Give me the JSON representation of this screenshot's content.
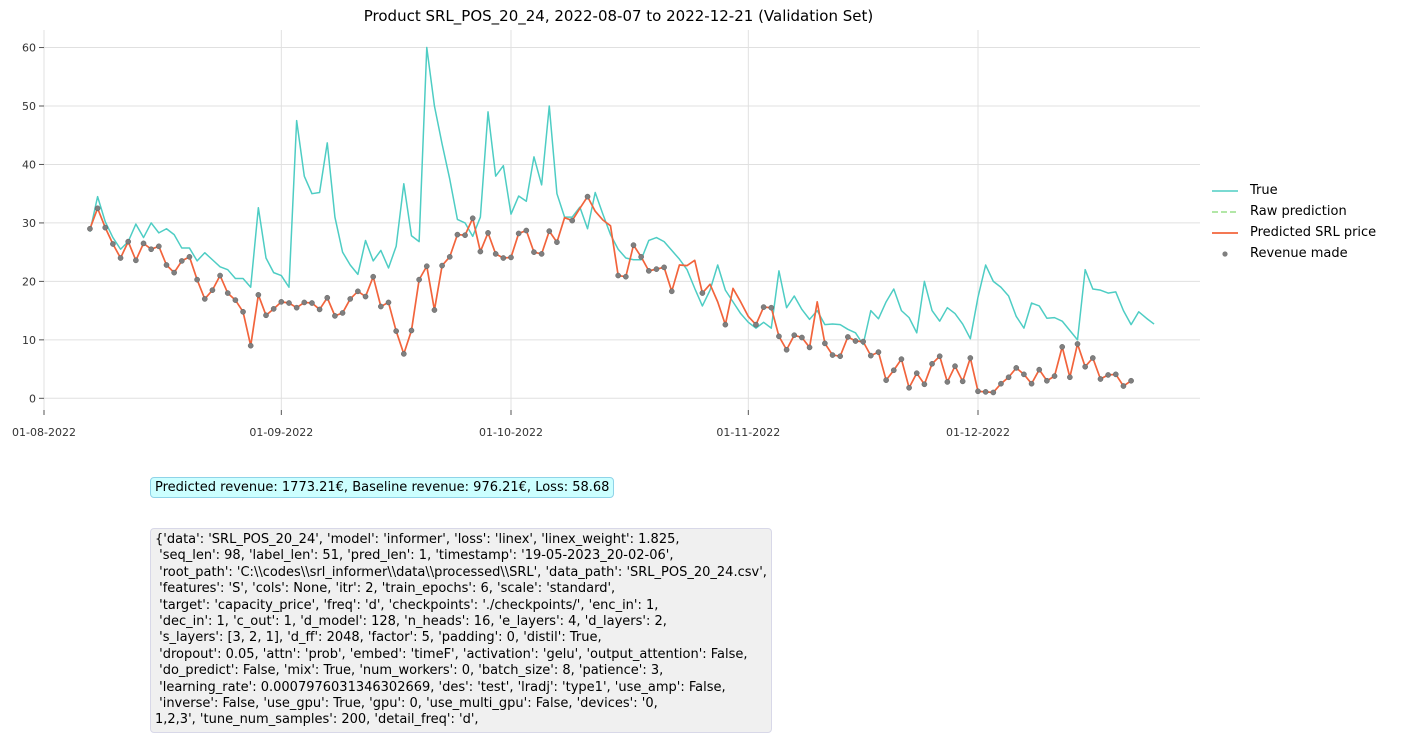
{
  "chart_data": {
    "type": "line",
    "title": "Product SRL_POS_20_24, 2022-08-07 to 2022-12-21 (Validation Set)",
    "xlabel": "",
    "ylabel": "",
    "x_start": "2022-08-07",
    "x_end": "2022-12-21",
    "xlim": [
      "2022-08-01",
      "2022-12-30"
    ],
    "ylim": [
      -2,
      63
    ],
    "yticks": [
      0,
      10,
      20,
      30,
      40,
      50,
      60
    ],
    "xticks": [
      {
        "date": "2022-08-01",
        "label": "01-08-2022"
      },
      {
        "date": "2022-09-01",
        "label": "01-09-2022"
      },
      {
        "date": "2022-10-01",
        "label": "01-10-2022"
      },
      {
        "date": "2022-11-01",
        "label": "01-11-2022"
      },
      {
        "date": "2022-12-01",
        "label": "01-12-2022"
      }
    ],
    "grid": true,
    "legend_position": "right",
    "series": [
      {
        "name": "True",
        "color": "#4ecdc4",
        "style": "solid",
        "values": [
          28.5,
          34.5,
          30.2,
          27.5,
          25.5,
          26.8,
          29.8,
          27.5,
          30,
          28.3,
          29,
          28,
          25.7,
          25.7,
          23.5,
          24.9,
          23.7,
          22.5,
          22,
          20.5,
          20.5,
          19,
          32.6,
          24,
          21.5,
          21,
          19,
          47.5,
          38,
          35,
          35.2,
          43.7,
          31,
          25,
          22.8,
          21.2,
          27,
          23.5,
          25.3,
          22.3,
          26,
          36.7,
          27.8,
          26.8,
          60,
          50,
          43.5,
          37.5,
          30.6,
          30,
          27.7,
          31,
          49,
          38,
          39.8,
          31.5,
          34.6,
          33.7,
          41.3,
          36.5,
          50,
          35,
          31,
          31,
          32.7,
          29,
          35.2,
          31.5,
          28,
          25.5,
          24,
          23.7,
          23.7,
          27,
          27.5,
          26.8,
          25.3,
          23.8,
          22,
          18.8,
          15.8,
          18.5,
          22.8,
          18.5,
          16.5,
          14.5,
          13,
          12,
          13,
          12,
          21.8,
          15.5,
          17.5,
          15.2,
          13.5,
          15,
          12.6,
          12.7,
          12.6,
          11.8,
          11.2,
          9.2,
          15,
          13.6,
          16.5,
          18.7,
          15,
          13.8,
          11.2,
          20,
          15,
          13.2,
          15.5,
          14.5,
          12.7,
          10.2,
          17.3,
          22.8,
          20,
          19,
          17.5,
          14,
          12,
          16.3,
          15.8,
          13.7,
          13.8,
          13.2,
          11.6,
          10,
          22,
          18.7,
          18.5,
          18,
          18.2,
          15,
          12.6,
          14.8,
          13.7,
          12.7
        ]
      },
      {
        "name": "Raw prediction",
        "color": "#98df8a",
        "style": "dashed",
        "values": []
      },
      {
        "name": "Predicted SRL price",
        "color": "#f2643c",
        "style": "solid",
        "values": [
          29,
          32.5,
          29.2,
          26.4,
          24,
          26.8,
          23.6,
          26.5,
          25.5,
          26,
          22.8,
          21.5,
          23.5,
          24.2,
          20.3,
          17,
          18.5,
          21,
          18,
          16.8,
          14.8,
          9,
          17.7,
          14.2,
          15.3,
          16.5,
          16.3,
          15.5,
          16.4,
          16.3,
          15.2,
          17.2,
          14.1,
          14.6,
          17,
          18.3,
          17.4,
          20.8,
          15.7,
          16.4,
          11.5,
          7.6,
          11.6,
          20.3,
          22.6,
          15.1,
          22.7,
          24.2,
          28,
          27.9,
          30.8,
          25.1,
          28.3,
          24.7,
          24,
          24.1,
          28.2,
          28.7,
          25,
          24.7,
          28.6,
          26.7,
          30.9,
          30.4,
          32.5,
          34.5,
          32,
          30.5,
          29.5,
          21,
          20.8,
          26.2,
          24.2,
          21.8,
          22.1,
          22.4,
          18.3,
          22.8,
          22.7,
          23.6,
          18,
          19.5,
          16.5,
          12.6,
          18.8,
          16.5,
          14,
          12.6,
          15.6,
          15.5,
          10.6,
          8.3,
          10.8,
          10.4,
          8.7,
          16.5,
          9.4,
          7.4,
          7.2,
          10.5,
          9.8,
          9.7,
          7.3,
          7.9,
          3.1,
          4.8,
          6.7,
          1.8,
          4.3,
          2.4,
          5.9,
          7.2,
          2.8,
          5.5,
          2.9,
          6.9,
          1.2,
          1.1,
          1,
          2.5,
          3.6,
          5.2,
          4.1,
          2.5,
          4.9,
          3,
          3.8,
          8.8,
          3.6,
          9.3,
          5.4,
          6.9,
          3.3,
          4,
          4.1,
          2.1,
          3
        ]
      },
      {
        "name": "Revenue made",
        "color": "#7f7f7f",
        "style": "markers",
        "values": [
          29,
          32.5,
          29.2,
          26.4,
          24,
          26.8,
          23.6,
          26.5,
          25.5,
          26,
          22.8,
          21.5,
          23.5,
          24.2,
          20.3,
          17,
          18.5,
          21,
          18,
          16.8,
          14.8,
          9,
          17.7,
          14.2,
          15.3,
          16.5,
          16.3,
          15.5,
          16.4,
          16.3,
          15.2,
          17.2,
          14.1,
          14.6,
          17,
          18.3,
          17.4,
          20.8,
          15.7,
          16.4,
          11.5,
          7.6,
          11.6,
          20.3,
          22.6,
          15.1,
          22.7,
          24.2,
          28,
          27.9,
          30.8,
          25.1,
          28.3,
          24.7,
          24,
          24.1,
          28.2,
          28.7,
          25,
          24.7,
          28.6,
          26.7,
          null,
          30.4,
          null,
          34.5,
          null,
          null,
          null,
          21,
          20.8,
          26.2,
          24.2,
          21.8,
          22.1,
          22.4,
          18.3,
          null,
          null,
          null,
          18,
          null,
          null,
          12.6,
          null,
          null,
          null,
          12.6,
          15.6,
          15.5,
          10.6,
          8.3,
          10.8,
          10.4,
          8.7,
          null,
          9.4,
          7.4,
          7.2,
          10.5,
          9.8,
          9.7,
          7.3,
          7.9,
          3.1,
          4.8,
          6.7,
          1.8,
          4.3,
          2.4,
          5.9,
          7.2,
          2.8,
          5.5,
          2.9,
          6.9,
          1.2,
          1.1,
          1,
          2.5,
          3.6,
          5.2,
          4.1,
          2.5,
          4.9,
          3,
          3.8,
          8.8,
          3.6,
          9.3,
          5.4,
          6.9,
          3.3,
          4,
          4.1,
          2.1,
          3
        ]
      }
    ]
  },
  "info_text": "Predicted revenue: 1773.21€, Baseline revenue: 976.21€, Loss: 58.68",
  "config_text": "{'data': 'SRL_POS_20_24', 'model': 'informer', 'loss': 'linex', 'linex_weight': 1.825,\n 'seq_len': 98, 'label_len': 51, 'pred_len': 1, 'timestamp': '19-05-2023_20-02-06',\n 'root_path': 'C:\\\\codes\\\\srl_informer\\\\data\\\\processed\\\\SRL', 'data_path': 'SRL_POS_20_24.csv',\n 'features': 'S', 'cols': None, 'itr': 2, 'train_epochs': 6, 'scale': 'standard',\n 'target': 'capacity_price', 'freq': 'd', 'checkpoints': './checkpoints/', 'enc_in': 1,\n 'dec_in': 1, 'c_out': 1, 'd_model': 128, 'n_heads': 16, 'e_layers': 4, 'd_layers': 2,\n 's_layers': [3, 2, 1], 'd_ff': 2048, 'factor': 5, 'padding': 0, 'distil': True,\n 'dropout': 0.05, 'attn': 'prob', 'embed': 'timeF', 'activation': 'gelu', 'output_attention': False,\n 'do_predict': False, 'mix': True, 'num_workers': 0, 'batch_size': 8, 'patience': 3,\n 'learning_rate': 0.0007976031346302669, 'des': 'test', 'lradj': 'type1', 'use_amp': False,\n 'inverse': False, 'use_gpu': True, 'gpu': 0, 'use_multi_gpu': False, 'devices': '0,\n1,2,3', 'tune_num_samples': 200, 'detail_freq': 'd',"
}
